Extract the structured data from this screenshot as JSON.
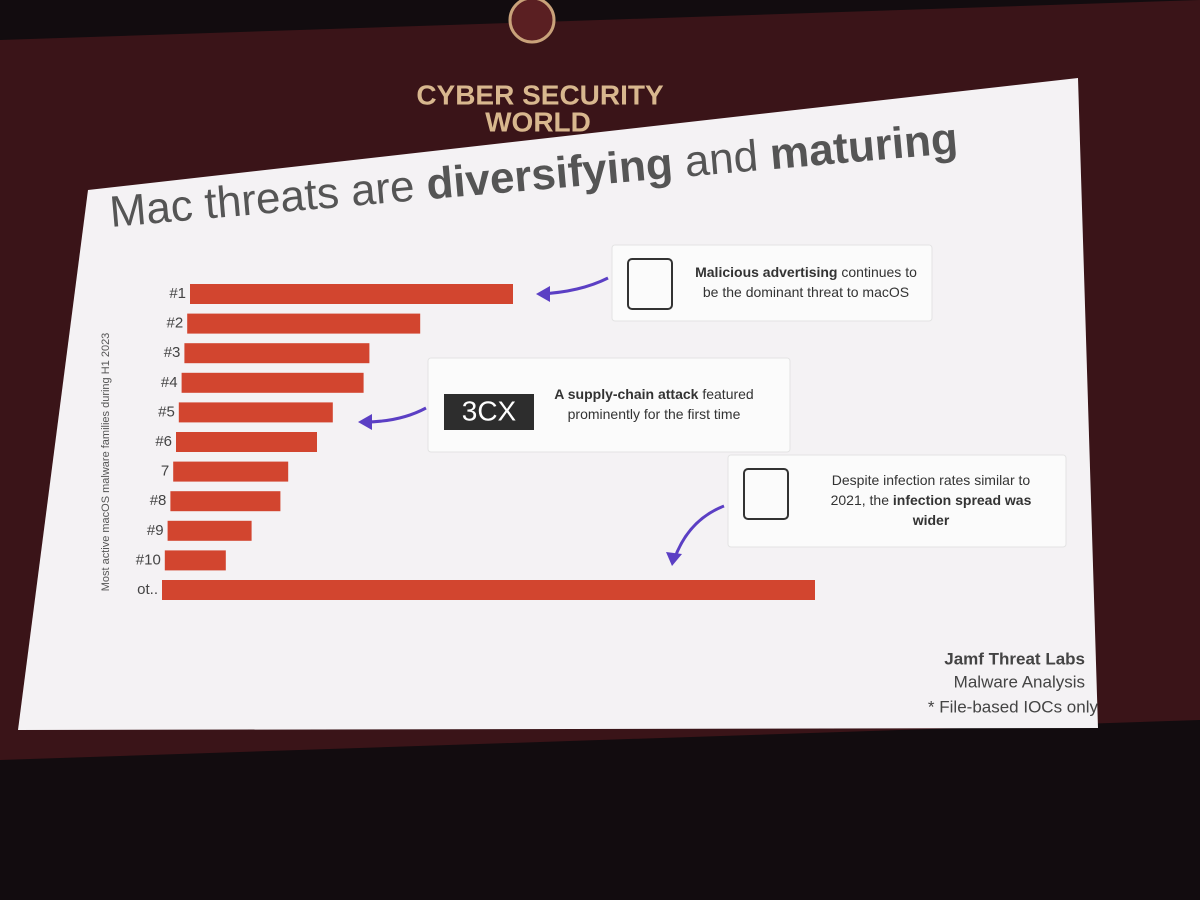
{
  "venue": {
    "line1": "CYBER SECURITY",
    "line2": "WORLD"
  },
  "slide": {
    "title": [
      {
        "text": "Mac threats are ",
        "bold": false
      },
      {
        "text": "diversifying",
        "bold": true
      },
      {
        "text": " and ",
        "bold": false
      },
      {
        "text": "maturing",
        "bold": true
      }
    ],
    "callouts": [
      {
        "lines": [
          [
            {
              "text": "Malicious advertising",
              "bold": true
            },
            {
              "text": " continues to",
              "bold": false
            }
          ],
          [
            {
              "text": "be the dominant threat to macOS",
              "bold": false
            }
          ]
        ]
      },
      {
        "logo": "3CX",
        "lines": [
          [
            {
              "text": "A supply-chain attack",
              "bold": true
            },
            {
              "text": " featured",
              "bold": false
            }
          ],
          [
            {
              "text": "prominently for the first time",
              "bold": false
            }
          ]
        ]
      },
      {
        "lines": [
          [
            {
              "text": "Despite infection rates similar to",
              "bold": false
            }
          ],
          [
            {
              "text": "2021, the ",
              "bold": false
            },
            {
              "text": "infection spread was",
              "bold": true
            }
          ],
          [
            {
              "text": "wider",
              "bold": true
            }
          ]
        ]
      }
    ],
    "footer": {
      "source": "Jamf Threat Labs",
      "subtitle": "Malware Analysis",
      "note": "* File-based IOCs only"
    }
  },
  "chart_data": {
    "type": "bar",
    "orientation": "horizontal",
    "y_label": "Most active macOS malware families during H1 2023",
    "categories": [
      "#1",
      "#2",
      "#3",
      "#4",
      "#5",
      "#6",
      "7",
      "#8",
      "#9",
      "#10",
      "ot.."
    ],
    "values": [
      323,
      233,
      185,
      182,
      154,
      141,
      115,
      110,
      84,
      61,
      653
    ],
    "color": "#d2452f",
    "xlim": [
      0,
      700
    ]
  }
}
